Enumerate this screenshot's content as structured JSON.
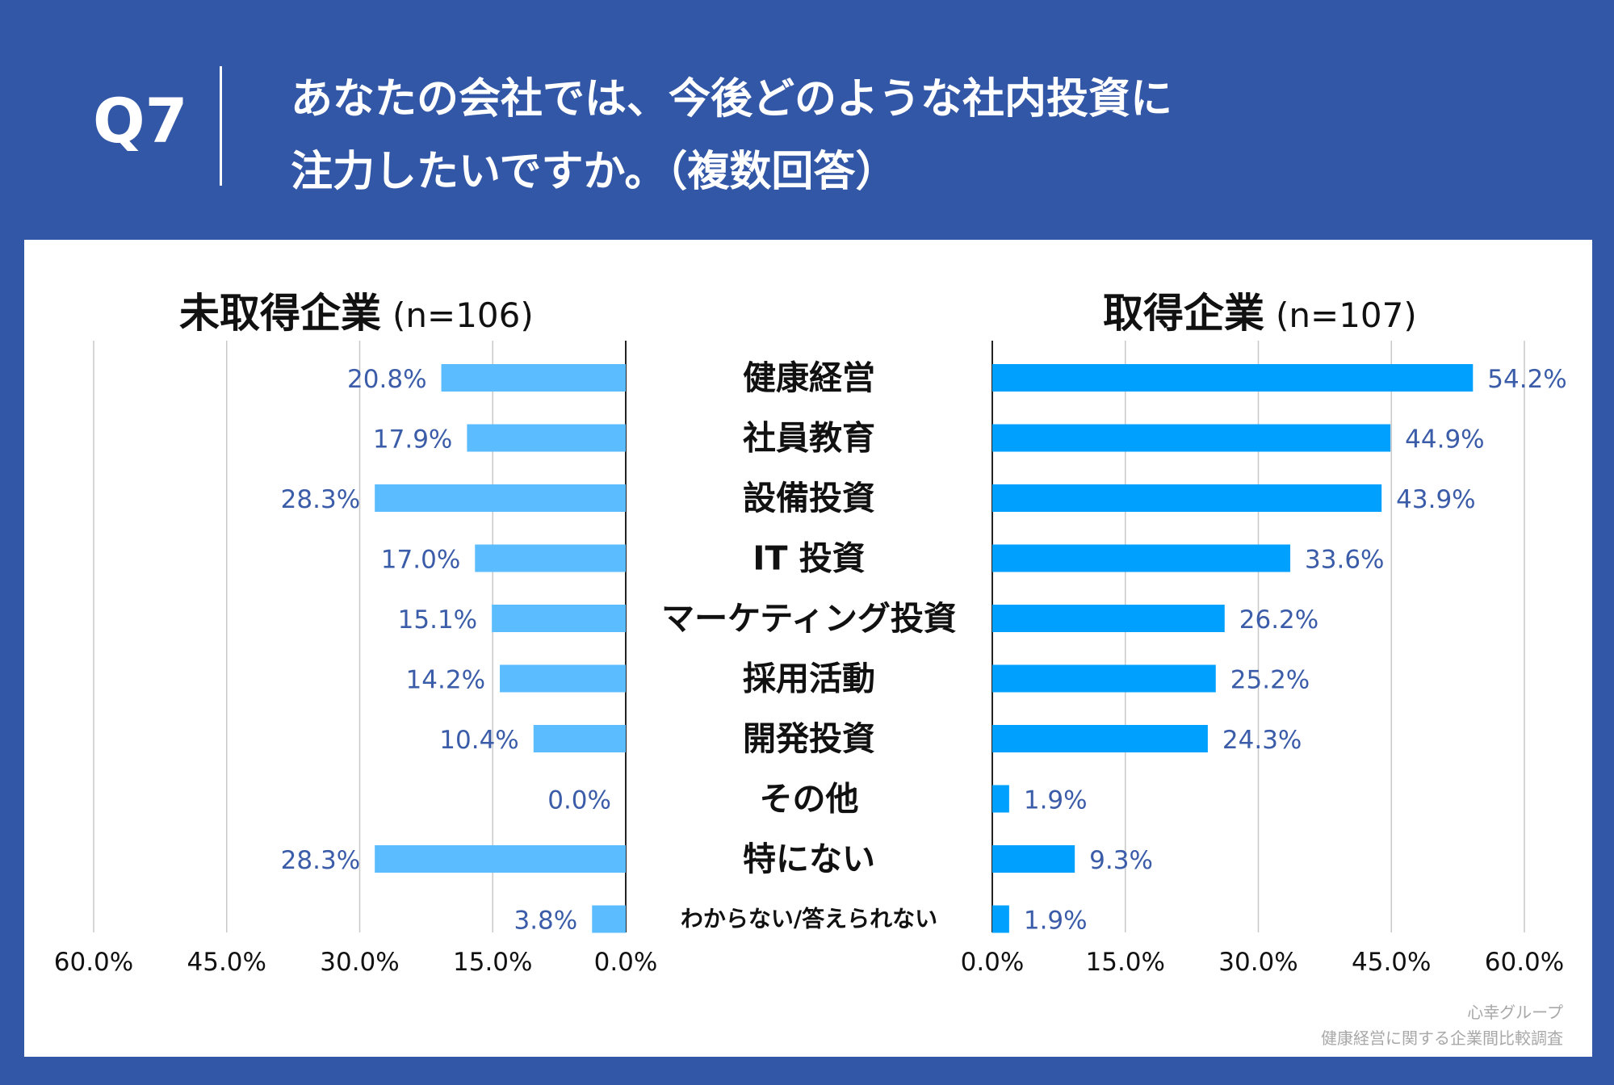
{
  "header": {
    "question_no": "Q7",
    "question_line1": "あなたの会社では、今後どのような社内投資に",
    "question_line2": "注力したいですか。（複数回答）"
  },
  "colors": {
    "background": "#3357a7",
    "left_bar": "#5bbcff",
    "right_bar": "#00a0ff",
    "value_label": "#3b5ca8",
    "grid": "#c8c8c8"
  },
  "chart_data": {
    "type": "bar",
    "orientation": "horizontal-butterfly",
    "categories": [
      "健康経営",
      "社員教育",
      "設備投資",
      "IT 投資",
      "マーケティング投資",
      "採用活動",
      "開発投資",
      "その他",
      "特にない",
      "わからない/答えられない"
    ],
    "series": [
      {
        "name": "未取得企業",
        "n_label": "(n=106)",
        "values": [
          20.8,
          17.9,
          28.3,
          17.0,
          15.1,
          14.2,
          10.4,
          0.0,
          28.3,
          3.8
        ],
        "value_labels": [
          "20.8%",
          "17.9%",
          "28.3%",
          "17.0%",
          "15.1%",
          "14.2%",
          "10.4%",
          "0.0%",
          "28.3%",
          "3.8%"
        ]
      },
      {
        "name": "取得企業",
        "n_label": "(n=107)",
        "values": [
          54.2,
          44.9,
          43.9,
          33.6,
          26.2,
          25.2,
          24.3,
          1.9,
          9.3,
          1.9
        ],
        "value_labels": [
          "54.2%",
          "44.9%",
          "43.9%",
          "33.6%",
          "26.2%",
          "25.2%",
          "24.3%",
          "1.9%",
          "9.3%",
          "1.9%"
        ]
      }
    ],
    "xlim": [
      0,
      60
    ],
    "left_ticks": [
      "60.0%",
      "45.0%",
      "30.0%",
      "15.0%",
      "0.0%"
    ],
    "right_ticks": [
      "0.0%",
      "15.0%",
      "30.0%",
      "45.0%",
      "60.0%"
    ],
    "tick_values": [
      0,
      15,
      30,
      45,
      60
    ],
    "grid": true
  },
  "footer": {
    "credit_line1": "心幸グループ",
    "credit_line2": "健康経営に関する企業間比較調査"
  }
}
